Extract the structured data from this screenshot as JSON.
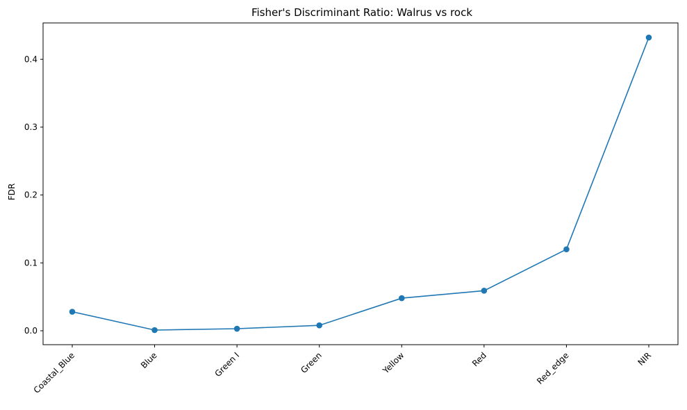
{
  "chart_data": {
    "type": "line",
    "title": "Fisher's Discriminant Ratio: Walrus vs rock",
    "xlabel": "",
    "ylabel": "FDR",
    "categories": [
      "Coastal_Blue",
      "Blue",
      "Green I",
      "Green",
      "Yellow",
      "Red",
      "Red_edge",
      "NIR"
    ],
    "series": [
      {
        "name": "FDR",
        "values": [
          0.028,
          0.001,
          0.003,
          0.008,
          0.048,
          0.059,
          0.12,
          0.432
        ]
      }
    ],
    "yticks": [
      0.0,
      0.1,
      0.2,
      0.3,
      0.4
    ],
    "ytick_labels": [
      "0.0",
      "0.1",
      "0.2",
      "0.3",
      "0.4"
    ],
    "ylim": [
      -0.0205,
      0.4535
    ],
    "grid": false,
    "legend": "none",
    "line_color": "#1f77b4"
  }
}
